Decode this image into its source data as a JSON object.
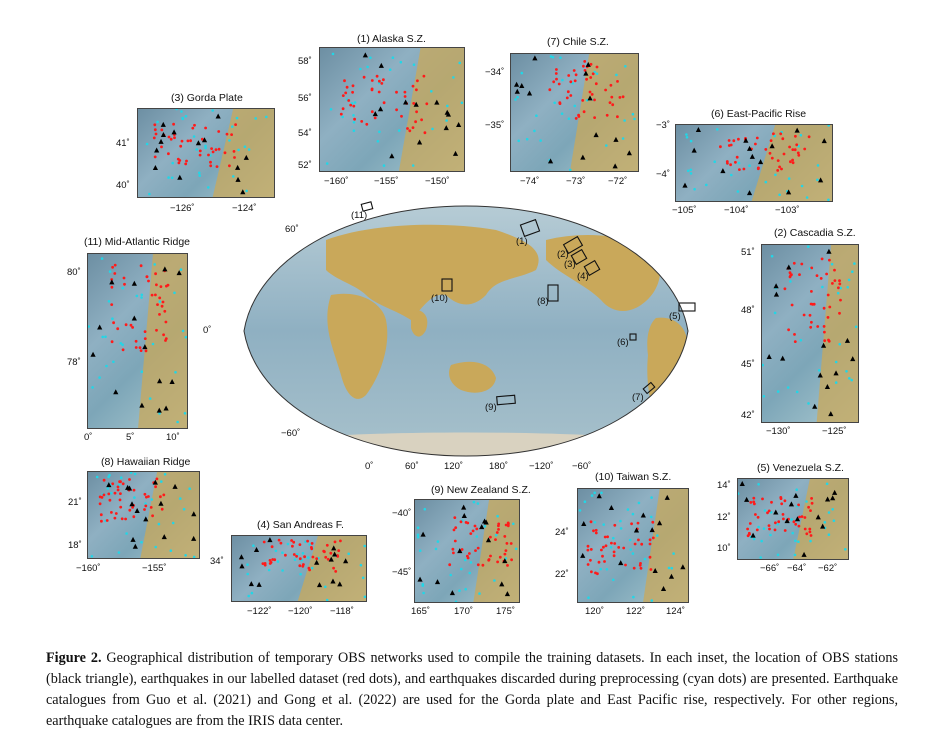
{
  "world": {
    "lat_labels": [
      "60˚",
      "0˚",
      "−60˚"
    ],
    "lon_labels": [
      "0˚",
      "60˚",
      "120˚",
      "180˚",
      "−120˚",
      "−60˚"
    ],
    "box_labels": [
      "(11)",
      "(1)",
      "(2)",
      "(3)",
      "(4)",
      "(10)",
      "(8)",
      "(5)",
      "(6)",
      "(7)",
      "(9)"
    ]
  },
  "insets": [
    {
      "id": "alaska",
      "title": "(1) Alaska S.Z.",
      "y_labels": [
        "58˚",
        "56˚",
        "54˚",
        "52˚"
      ],
      "x_labels": [
        "−160˚",
        "−155˚",
        "−150˚"
      ]
    },
    {
      "id": "chile",
      "title": "(7) Chile S.Z.",
      "y_labels": [
        "−34˚",
        "−35˚"
      ],
      "x_labels": [
        "−74˚",
        "−73˚",
        "−72˚"
      ]
    },
    {
      "id": "gorda",
      "title": "(3) Gorda Plate",
      "y_labels": [
        "41˚",
        "40˚"
      ],
      "x_labels": [
        "−126˚",
        "−124˚"
      ]
    },
    {
      "id": "epr",
      "title": "(6) East-Pacific Rise",
      "y_labels": [
        "−3˚",
        "−4˚"
      ],
      "x_labels": [
        "−105˚",
        "−104˚",
        "−103˚"
      ]
    },
    {
      "id": "mar",
      "title": "(11) Mid-Atlantic Ridge",
      "y_labels": [
        "80˚",
        "78˚"
      ],
      "x_labels": [
        "0˚",
        "5˚",
        "10˚"
      ]
    },
    {
      "id": "cascadia",
      "title": "(2) Cascadia S.Z.",
      "y_labels": [
        "51˚",
        "48˚",
        "45˚",
        "42˚"
      ],
      "x_labels": [
        "−130˚",
        "−125˚"
      ]
    },
    {
      "id": "hawaii",
      "title": "(8) Hawaiian Ridge",
      "y_labels": [
        "21˚",
        "18˚"
      ],
      "x_labels": [
        "−160˚",
        "−155˚"
      ]
    },
    {
      "id": "sanandreas",
      "title": "(4) San Andreas F.",
      "y_labels": [
        "34˚"
      ],
      "x_labels": [
        "−122˚",
        "−120˚",
        "−118˚"
      ]
    },
    {
      "id": "newzealand",
      "title": "(9) New Zealand S.Z.",
      "y_labels": [
        "−40˚",
        "−45˚"
      ],
      "x_labels": [
        "165˚",
        "170˚",
        "175˚"
      ]
    },
    {
      "id": "taiwan",
      "title": "(10) Taiwan S.Z.",
      "y_labels": [
        "24˚",
        "22˚"
      ],
      "x_labels": [
        "120˚",
        "122˚",
        "124˚"
      ]
    },
    {
      "id": "venezuela",
      "title": "(5) Venezuela S.Z.",
      "y_labels": [
        "14˚",
        "12˚",
        "10˚"
      ],
      "x_labels": [
        "−66˚",
        "−64˚",
        "−62˚"
      ]
    }
  ],
  "caption": {
    "label": "Figure 2.",
    "text": " Geographical distribution of temporary OBS networks used to compile the training datasets. In each inset, the location of OBS stations (black triangle), earthquakes in our labelled dataset (red dots), and earthquakes discarded during preprocessing (cyan dots) are presented. Earthquake catalogues from Guo et al. (2021) and Gong et al. (2022) are used for the Gorda plate and East Pacific rise, respectively. For other regions, earthquake catalogues are from the IRIS data center."
  },
  "colors": {
    "ocean": "#8fb0c2",
    "land": "#c9a85a",
    "station": "#000000",
    "labelled_eq": "#ff1a1a",
    "discarded_eq": "#22d6e6"
  }
}
